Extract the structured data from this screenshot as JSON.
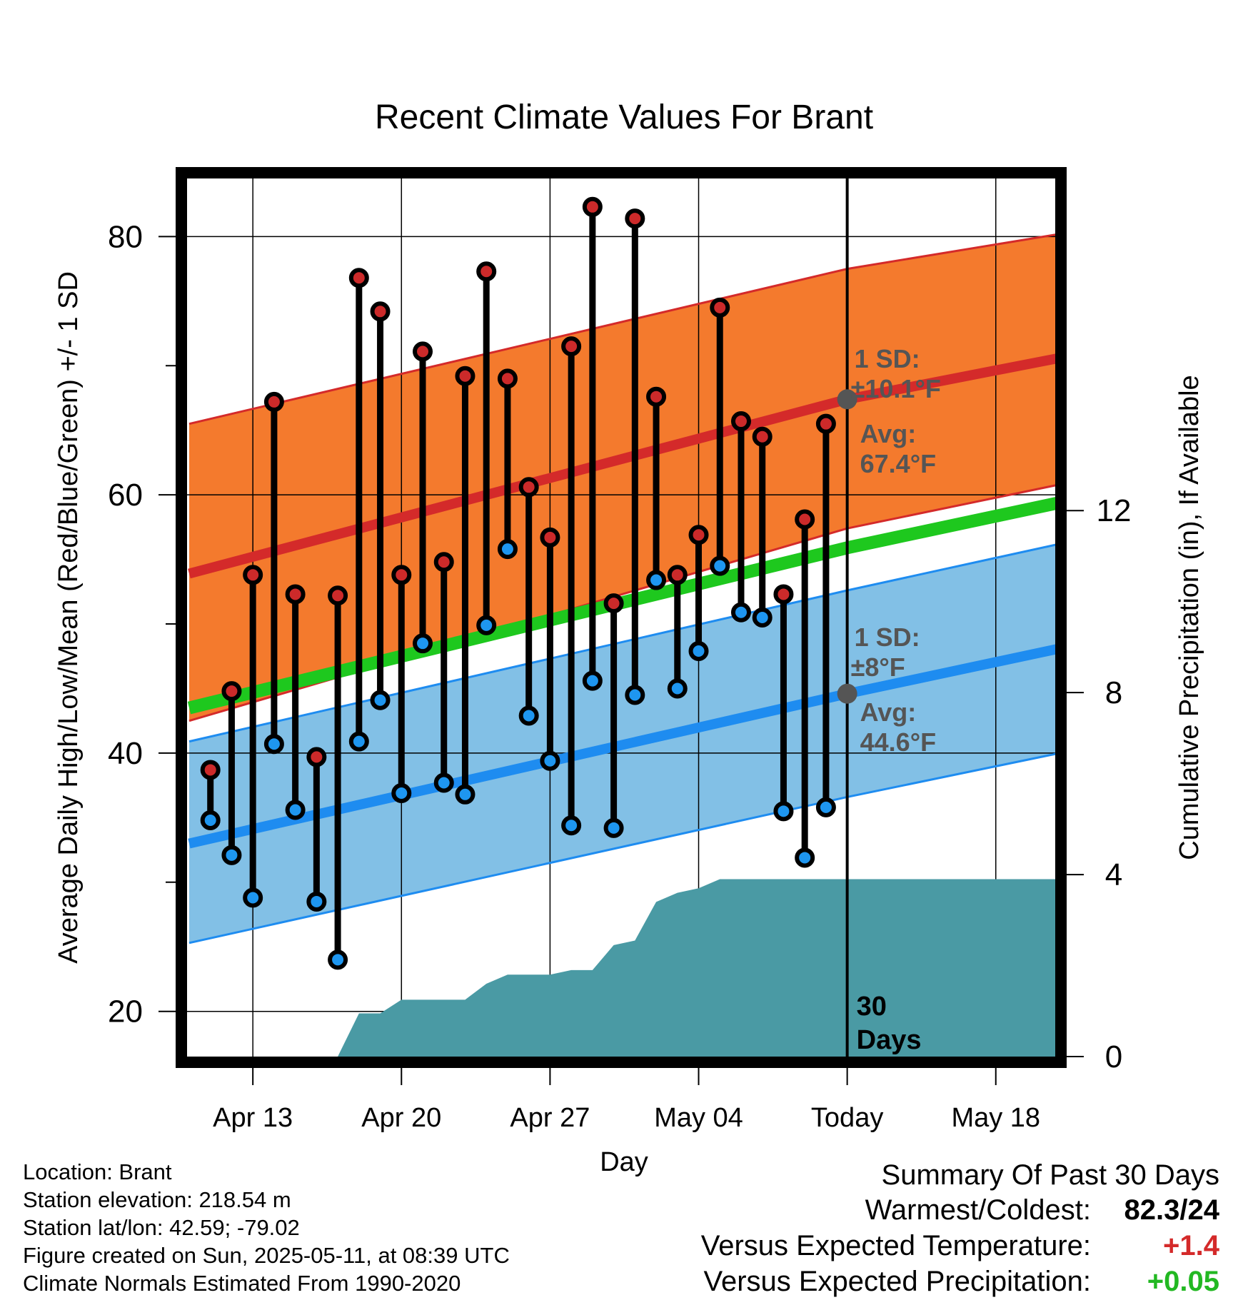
{
  "chart_data": {
    "type": "line",
    "title": "Recent Climate Values For Brant",
    "xlabel": "Day",
    "ylabel": "Average Daily High/Low/Mean (Red/Blue/Green) +/- 1 SD",
    "y2label": "Cumulative Precipitation (in), If Available",
    "x_ticks": [
      {
        "date": "2025-04-13",
        "label": "Apr 13"
      },
      {
        "date": "2025-04-20",
        "label": "Apr 20"
      },
      {
        "date": "2025-04-27",
        "label": "Apr 27"
      },
      {
        "date": "2025-05-04",
        "label": "May 04"
      },
      {
        "date": "2025-05-11",
        "label": "Today"
      },
      {
        "date": "2025-05-18",
        "label": "May 18"
      }
    ],
    "xlim": [
      "2025-04-09.9",
      "2025-05-20.8"
    ],
    "ylim": [
      16.5,
      84.5
    ],
    "y_ticks": [
      20,
      40,
      60,
      80
    ],
    "y_minor_ticks": [
      30,
      50,
      70
    ],
    "y2lim": [
      0,
      19.3
    ],
    "y2_ticks": [
      0,
      4,
      8,
      12
    ],
    "grid": true,
    "today": "2025-05-11",
    "today_label_lines": [
      "30",
      "Days"
    ],
    "normals": {
      "dates": [
        "2025-04-10",
        "2025-05-11",
        "2025-05-21"
      ],
      "high": [
        53.9,
        67.4,
        70.6
      ],
      "high_sd_upper": [
        65.5,
        77.5,
        80.2
      ],
      "high_sd_lower": [
        42.5,
        57.4,
        60.8
      ],
      "mean": [
        43.5,
        55.9,
        59.4
      ],
      "low": [
        33.0,
        44.6,
        48.1
      ],
      "low_sd_upper": [
        40.9,
        52.6,
        56.2
      ],
      "low_sd_lower": [
        25.3,
        36.6,
        40.0
      ]
    },
    "high_annotation": {
      "sd_label": "1 SD:",
      "sd_value": "±10.1°F",
      "avg_label": "Avg:",
      "avg_value": "67.4°F"
    },
    "low_annotation": {
      "sd_label": "1 SD:",
      "sd_value": "±8°F",
      "avg_label": "Avg:",
      "avg_value": "44.6°F"
    },
    "days": [
      {
        "date": "2025-04-11",
        "high": 38.7,
        "low": 34.8
      },
      {
        "date": "2025-04-12",
        "high": 44.8,
        "low": 32.1
      },
      {
        "date": "2025-04-13",
        "high": 53.8,
        "low": 28.8
      },
      {
        "date": "2025-04-14",
        "high": 67.2,
        "low": 40.7
      },
      {
        "date": "2025-04-15",
        "high": 52.3,
        "low": 35.6
      },
      {
        "date": "2025-04-16",
        "high": 39.7,
        "low": 28.5
      },
      {
        "date": "2025-04-17",
        "high": 52.2,
        "low": 24.0
      },
      {
        "date": "2025-04-18",
        "high": 76.8,
        "low": 40.9
      },
      {
        "date": "2025-04-19",
        "high": 74.2,
        "low": 44.1
      },
      {
        "date": "2025-04-20",
        "high": 53.8,
        "low": 36.9
      },
      {
        "date": "2025-04-21",
        "high": 71.1,
        "low": 48.5
      },
      {
        "date": "2025-04-22",
        "high": 54.8,
        "low": 37.7
      },
      {
        "date": "2025-04-23",
        "high": 69.2,
        "low": 36.8
      },
      {
        "date": "2025-04-24",
        "high": 77.3,
        "low": 49.9
      },
      {
        "date": "2025-04-25",
        "high": 69.0,
        "low": 55.8
      },
      {
        "date": "2025-04-26",
        "high": 60.6,
        "low": 42.9
      },
      {
        "date": "2025-04-27",
        "high": 56.7,
        "low": 39.4
      },
      {
        "date": "2025-04-28",
        "high": 71.5,
        "low": 34.4
      },
      {
        "date": "2025-04-29",
        "high": 82.3,
        "low": 45.6
      },
      {
        "date": "2025-04-30",
        "high": 51.6,
        "low": 34.2
      },
      {
        "date": "2025-05-01",
        "high": 81.4,
        "low": 44.5
      },
      {
        "date": "2025-05-02",
        "high": 67.6,
        "low": 53.4
      },
      {
        "date": "2025-05-03",
        "high": 53.8,
        "low": 45.0
      },
      {
        "date": "2025-05-04",
        "high": 56.9,
        "low": 47.9
      },
      {
        "date": "2025-05-05",
        "high": 74.5,
        "low": 54.5
      },
      {
        "date": "2025-05-06",
        "high": 65.7,
        "low": 50.9
      },
      {
        "date": "2025-05-07",
        "high": 64.5,
        "low": 50.5
      },
      {
        "date": "2025-05-08",
        "high": 52.3,
        "low": 35.5
      },
      {
        "date": "2025-05-09",
        "high": 58.1,
        "low": 31.9
      },
      {
        "date": "2025-05-10",
        "high": 65.5,
        "low": 35.8
      }
    ],
    "precip_cumulative": {
      "dates": [
        "2025-04-17",
        "2025-04-18",
        "2025-04-19",
        "2025-04-20",
        "2025-04-21",
        "2025-04-22",
        "2025-04-23",
        "2025-04-24",
        "2025-04-25",
        "2025-04-26",
        "2025-04-27",
        "2025-04-28",
        "2025-04-29",
        "2025-04-30",
        "2025-05-01",
        "2025-05-02",
        "2025-05-03",
        "2025-05-04",
        "2025-05-05",
        "2025-05-06",
        "2025-05-07",
        "2025-05-21"
      ],
      "values": [
        0,
        0.95,
        0.95,
        1.25,
        1.25,
        1.25,
        1.25,
        1.6,
        1.8,
        1.8,
        1.8,
        1.9,
        1.9,
        2.45,
        2.55,
        3.4,
        3.6,
        3.7,
        3.9,
        3.9,
        3.9,
        3.9
      ]
    }
  },
  "footer": {
    "location": "Location: Brant",
    "elevation": "Station elevation: 218.54 m",
    "latlon": "Station lat/lon: 42.59; -79.02",
    "created": "Figure created on Sun, 2025-05-11, at 08:39 UTC",
    "normals_period": "Climate Normals Estimated From 1990-2020"
  },
  "summary": {
    "title": "Summary Of Past 30 Days",
    "warmest_coldest_label": "Warmest/Coldest:",
    "warmest_coldest_value": "82.3/24",
    "temp_label": "Versus Expected Temperature:",
    "temp_value": "+1.4",
    "temp_color": "#d42a2a",
    "precip_label": "Versus Expected Precipitation:",
    "precip_value": "+0.05",
    "precip_color": "#22b822"
  },
  "colors": {
    "high_band": "#f47a2d",
    "high_line": "#d42a2a",
    "mean_line": "#1ec81e",
    "low_band": "#82c0e6",
    "low_line": "#1e8cf0",
    "precip_fill": "#4a9aa4",
    "high_marker": "#cc2a2a",
    "low_marker": "#1e96f0",
    "annotation_text": "#555555",
    "avg_point": "#555555"
  }
}
